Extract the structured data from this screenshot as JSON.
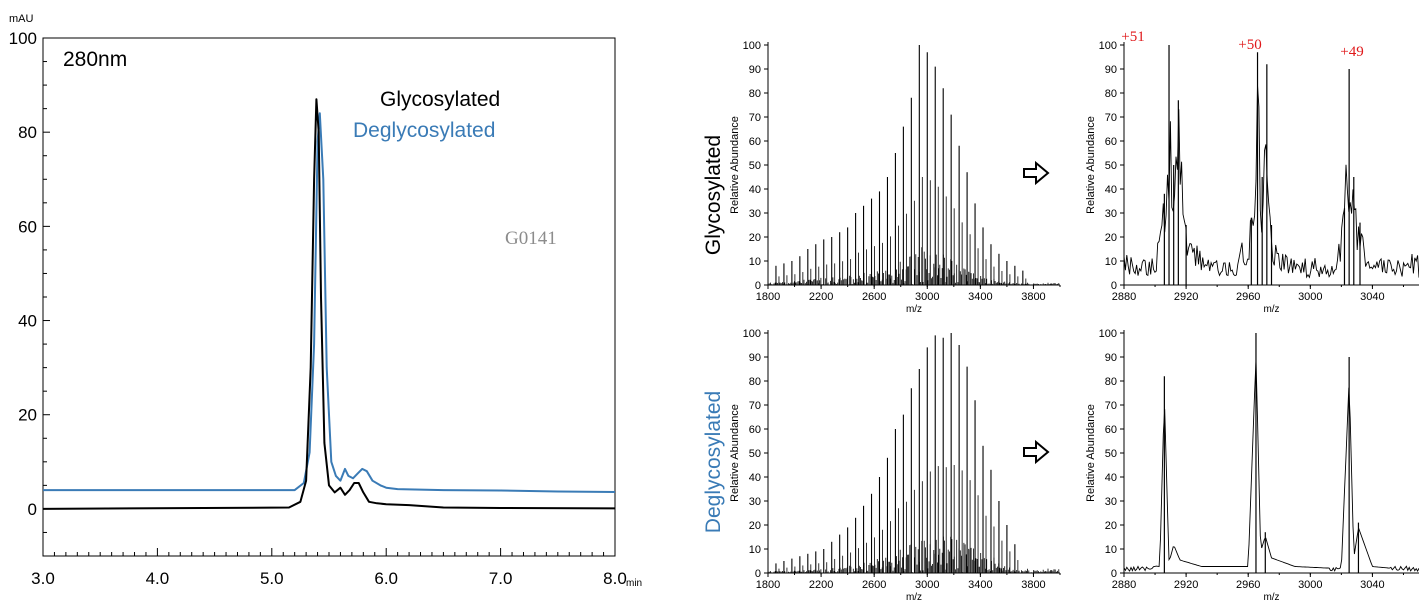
{
  "colors": {
    "glycosylated": "#000000",
    "deglycosylated": "#3a7bb6",
    "charge_label": "#e0191b",
    "watermark": "#8c8c8c"
  },
  "chromatogram": {
    "y_unit": "mAU",
    "x_unit": "min",
    "wavelength": "280nm",
    "sample_id": "G0141",
    "legend": {
      "glyco": "Glycosylated",
      "deglyco": "Deglycosylated"
    },
    "y_ticks": [
      "100",
      "80",
      "60",
      "40",
      "20",
      "0"
    ],
    "x_ticks": [
      "3.0",
      "4.0",
      "5.0",
      "6.0",
      "7.0",
      "8.0"
    ]
  },
  "row_labels": {
    "top": "Glycosylated",
    "bottom": "Deglycosylated"
  },
  "ms_panels": {
    "y_label": "Relative Abundance",
    "x_label": "m/z",
    "y_ticks": [
      "100",
      "90",
      "80",
      "70",
      "60",
      "50",
      "40",
      "30",
      "20",
      "10",
      "0"
    ],
    "full_x_ticks": [
      "1800",
      "2200",
      "2600",
      "3000",
      "3400",
      "3800"
    ],
    "zoom_x_ticks": [
      "2880",
      "2920",
      "2960",
      "3000",
      "3040"
    ],
    "charge_states": [
      "+51",
      "+50",
      "+49"
    ],
    "arrow_icon": "right-arrow-icon"
  },
  "chart_data": [
    {
      "type": "line",
      "title": "",
      "xlabel": "min",
      "ylabel": "mAU",
      "xlim": [
        3.0,
        8.0
      ],
      "ylim": [
        -10,
        100
      ],
      "annotations": [
        "280nm",
        "G0141"
      ],
      "series": [
        {
          "name": "Glycosylated",
          "x": [
            3.0,
            5.15,
            5.25,
            5.3,
            5.34,
            5.37,
            5.39,
            5.41,
            5.43,
            5.46,
            5.5,
            5.55,
            5.6,
            5.64,
            5.68,
            5.72,
            5.76,
            5.8,
            5.85,
            5.92,
            6.0,
            6.2,
            6.5,
            7.0,
            8.0
          ],
          "y": [
            0,
            0.3,
            1.5,
            6,
            30,
            70,
            87,
            80,
            45,
            14,
            5,
            3.5,
            4.5,
            3,
            4,
            5.5,
            5.5,
            3.5,
            1.5,
            1.2,
            1.0,
            0.8,
            0.3,
            0.2,
            0.1
          ]
        },
        {
          "name": "Deglycosylated",
          "x": [
            3.0,
            5.2,
            5.28,
            5.33,
            5.37,
            5.4,
            5.42,
            5.45,
            5.48,
            5.52,
            5.56,
            5.6,
            5.64,
            5.67,
            5.71,
            5.75,
            5.79,
            5.83,
            5.88,
            5.95,
            6.0,
            6.1,
            6.5,
            7.0,
            7.5,
            8.0
          ],
          "y": [
            4.0,
            4.0,
            5.5,
            12,
            35,
            78,
            84,
            70,
            30,
            10,
            7,
            6,
            8.5,
            7,
            6.5,
            7.5,
            8.5,
            8,
            6,
            5,
            4.5,
            4.2,
            4.0,
            3.9,
            3.7,
            3.6
          ]
        }
      ]
    },
    {
      "type": "line",
      "title": "Glycosylated",
      "xlabel": "m/z",
      "ylabel": "Relative Abundance",
      "xlim": [
        1800,
        4000
      ],
      "ylim": [
        0,
        100
      ],
      "series": [
        {
          "name": "Glycosylated",
          "x": [
            1860,
            1920,
            1980,
            2040,
            2100,
            2160,
            2220,
            2280,
            2340,
            2400,
            2460,
            2520,
            2580,
            2640,
            2700,
            2760,
            2820,
            2880,
            2940,
            3000,
            3060,
            3120,
            3180,
            3240,
            3300,
            3360,
            3420,
            3480,
            3540,
            3600,
            3660,
            3720
          ],
          "y": [
            8,
            9,
            10,
            12,
            15,
            17,
            19,
            20,
            22,
            24,
            30,
            33,
            36,
            39,
            45,
            55,
            66,
            78,
            100,
            97,
            91,
            82,
            71,
            58,
            47,
            34,
            24,
            17,
            13,
            10,
            8,
            6
          ]
        }
      ]
    },
    {
      "type": "line",
      "title": "Glycosylated",
      "xlabel": "m/z",
      "ylabel": "Relative Abundance",
      "xlim": [
        2880,
        3070
      ],
      "ylim": [
        0,
        100
      ],
      "annotations": [
        "+51",
        "+50",
        "+49"
      ],
      "series": [
        {
          "name": "Glycosylated",
          "x": [
            2880,
            2900,
            2906,
            2909,
            2912,
            2915,
            2920,
            2930,
            2950,
            2962,
            2966,
            2969,
            2972,
            2975,
            2980,
            3000,
            3015,
            3022,
            3025,
            3028,
            3032,
            3040,
            3060,
            3070
          ],
          "y": [
            8,
            12,
            38,
            100,
            50,
            77,
            25,
            14,
            8,
            28,
            97,
            45,
            92,
            25,
            14,
            7,
            10,
            32,
            90,
            45,
            26,
            12,
            10,
            8
          ]
        }
      ]
    },
    {
      "type": "line",
      "title": "Deglycosylated",
      "xlabel": "m/z",
      "ylabel": "Relative Abundance",
      "xlim": [
        1800,
        4000
      ],
      "ylim": [
        0,
        100
      ],
      "series": [
        {
          "name": "Deglycosylated",
          "x": [
            1860,
            1920,
            1980,
            2040,
            2100,
            2160,
            2220,
            2280,
            2340,
            2400,
            2460,
            2520,
            2580,
            2640,
            2700,
            2760,
            2820,
            2880,
            2940,
            3000,
            3060,
            3120,
            3180,
            3240,
            3300,
            3360,
            3420,
            3480,
            3540,
            3600,
            3660
          ],
          "y": [
            4,
            5,
            6,
            7,
            8,
            9,
            10,
            13,
            16,
            19,
            23,
            28,
            33,
            40,
            48,
            60,
            66,
            77,
            85,
            94,
            99,
            98,
            100,
            95,
            86,
            72,
            53,
            43,
            30,
            20,
            12
          ]
        }
      ]
    },
    {
      "type": "line",
      "title": "Deglycosylated",
      "xlabel": "m/z",
      "ylabel": "Relative Abundance",
      "xlim": [
        2880,
        3070
      ],
      "ylim": [
        0,
        100
      ],
      "series": [
        {
          "name": "Deglycosylated",
          "x": [
            2880,
            2903,
            2906,
            2909,
            2912,
            2916,
            2930,
            2960,
            2965,
            2968,
            2971,
            2975,
            2990,
            3020,
            3025,
            3028,
            3031,
            3040,
            3070
          ],
          "y": [
            1,
            2,
            82,
            5,
            13,
            6,
            3,
            3,
            100,
            10,
            17,
            7,
            3,
            2,
            90,
            7,
            21,
            3,
            1
          ]
        }
      ]
    }
  ]
}
